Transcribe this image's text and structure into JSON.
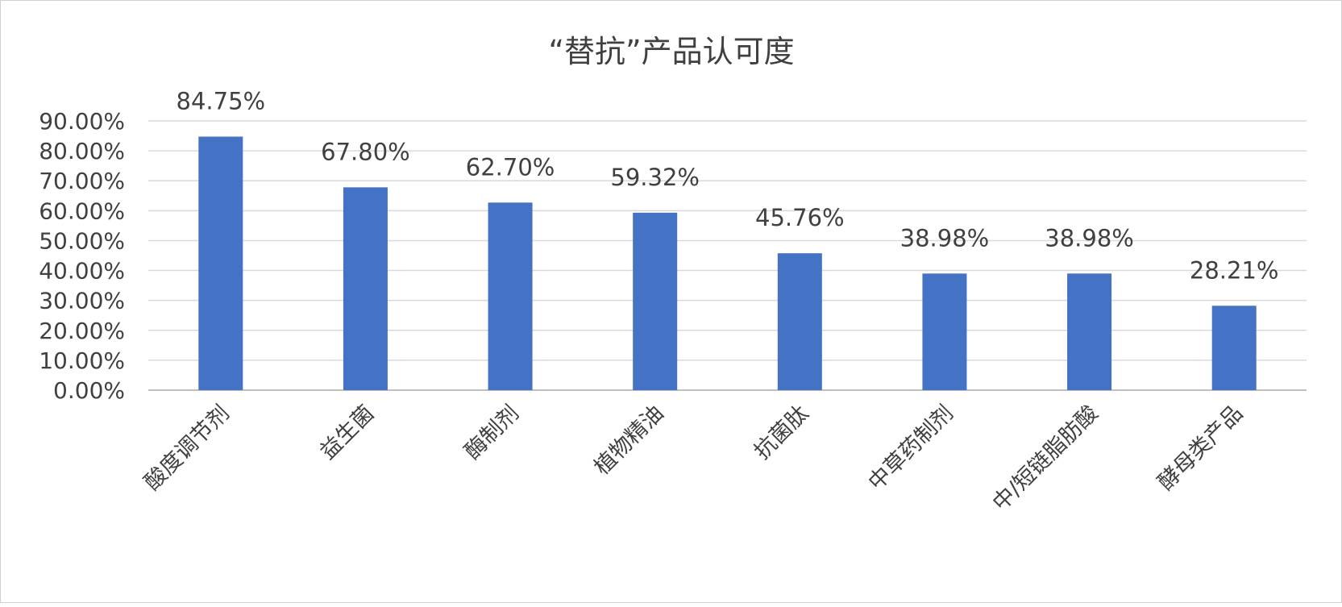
{
  "chart_data": {
    "type": "bar",
    "title": "“替抗”产品认可度",
    "categories": [
      "酸度调节剂",
      "益生菌",
      "酶制剂",
      "植物精油",
      "抗菌肽",
      "中草药制剂",
      "中/短链脂肪酸",
      "酵母类产品"
    ],
    "values": [
      84.75,
      67.8,
      62.7,
      59.32,
      45.76,
      38.98,
      38.98,
      28.21
    ],
    "data_labels": [
      "84.75%",
      "67.80%",
      "62.70%",
      "59.32%",
      "45.76%",
      "38.98%",
      "38.98%",
      "28.21%"
    ],
    "y_ticks": [
      "0.00%",
      "10.00%",
      "20.00%",
      "30.00%",
      "40.00%",
      "50.00%",
      "60.00%",
      "70.00%",
      "80.00%",
      "90.00%"
    ],
    "xlabel": "",
    "ylabel": "",
    "ylim": [
      0,
      90
    ],
    "grid": true,
    "legend": "none",
    "bar_color": "#4472C4"
  }
}
